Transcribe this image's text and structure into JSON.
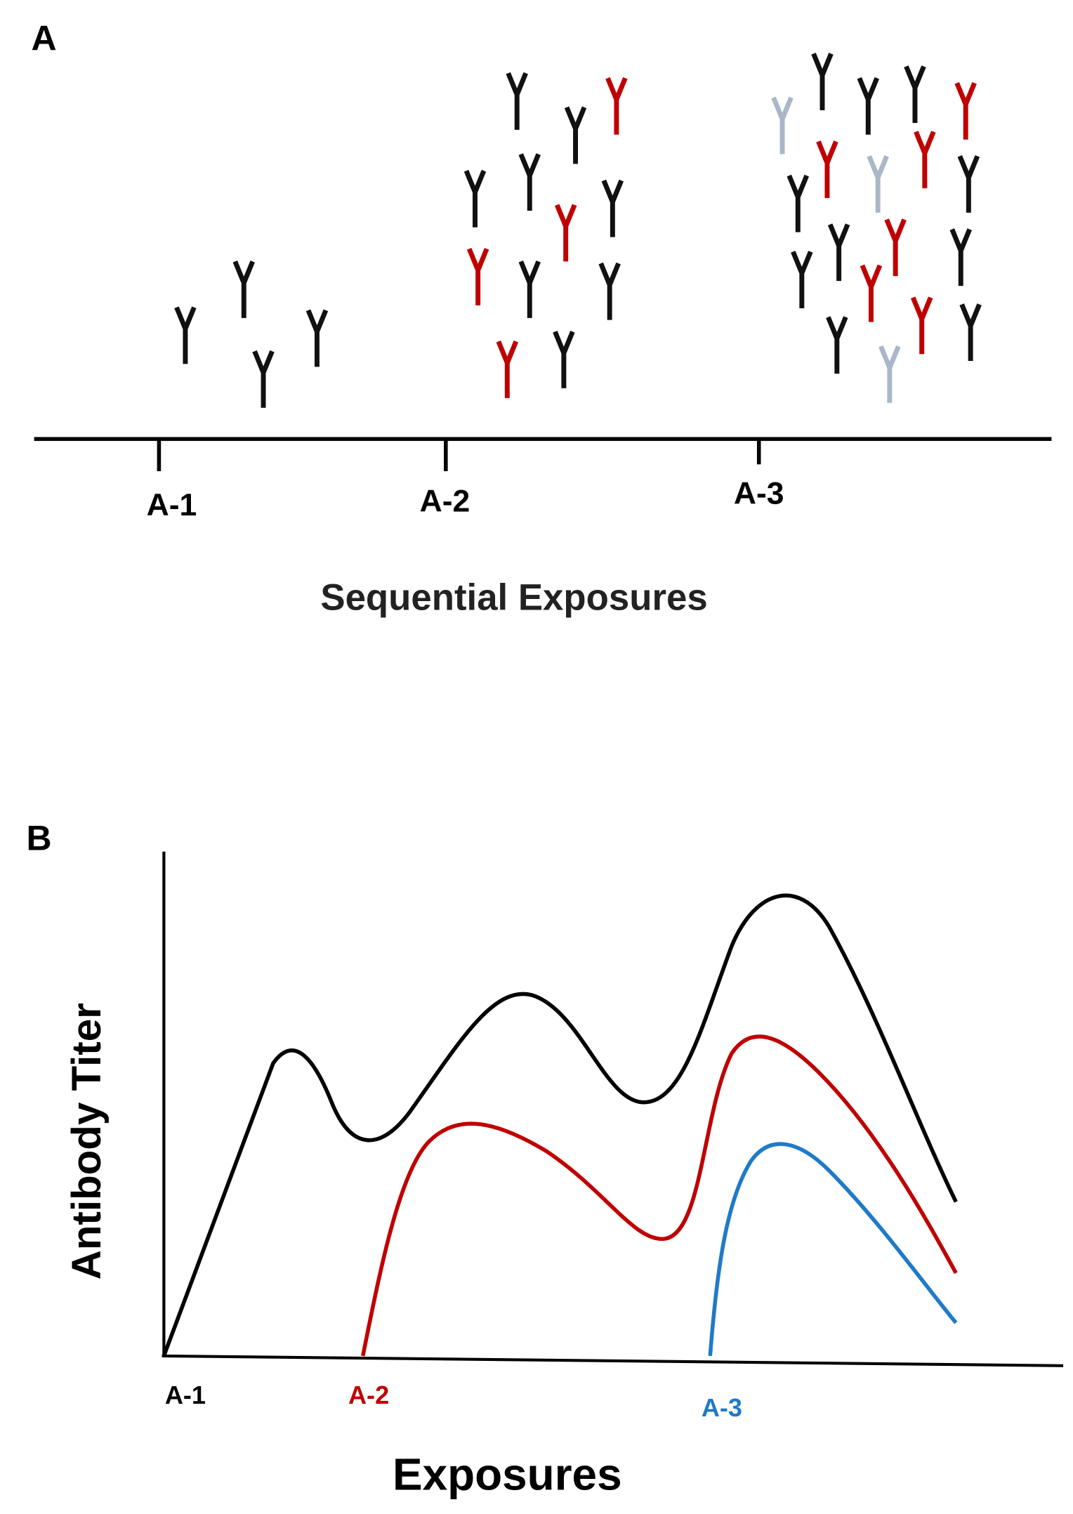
{
  "panel_a": {
    "label": "A",
    "ticks": [
      "A-1",
      "A-2",
      "A-3"
    ],
    "axis_title": "Sequential Exposures"
  },
  "panel_b": {
    "label": "B",
    "y_title": "Antibody Titer",
    "ticks": [
      "A-1",
      "A-2",
      "A-3"
    ],
    "x_title": "Exposures"
  }
}
